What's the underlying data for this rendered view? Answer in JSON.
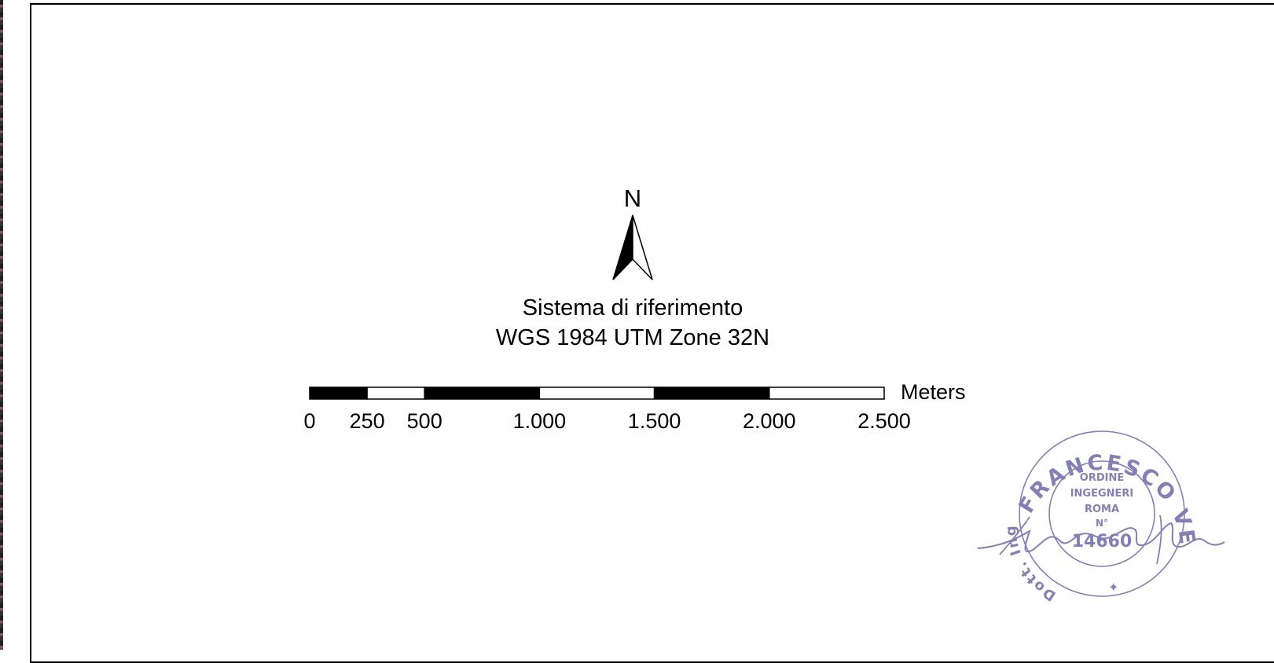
{
  "north_arrow": {
    "letter": "N"
  },
  "reference_system": {
    "line1": "Sistema di riferimento",
    "line2": "WGS 1984 UTM Zone 32N"
  },
  "scale_bar": {
    "unit": "Meters",
    "max_value": 2500,
    "ticks": [
      {
        "value": 0,
        "label": "0"
      },
      {
        "value": 250,
        "label": "250"
      },
      {
        "value": 500,
        "label": "500"
      },
      {
        "value": 1000,
        "label": "1.000"
      },
      {
        "value": 1500,
        "label": "1.500"
      },
      {
        "value": 2000,
        "label": "2.000"
      },
      {
        "value": 2500,
        "label": "2.500"
      }
    ],
    "segments": [
      {
        "from": 0,
        "to": 250,
        "fill": "#000000"
      },
      {
        "from": 250,
        "to": 500,
        "fill": "#ffffff"
      },
      {
        "from": 500,
        "to": 1000,
        "fill": "#000000"
      },
      {
        "from": 1000,
        "to": 1500,
        "fill": "#ffffff"
      },
      {
        "from": 1500,
        "to": 2000,
        "fill": "#000000"
      },
      {
        "from": 2000,
        "to": 2500,
        "fill": "#ffffff"
      }
    ]
  },
  "stamp": {
    "ring_text_top": "FRANCESCO VENTURA",
    "ring_text_left": "Dott. Ing.",
    "center_lines": [
      "ORDINE",
      "INGEGNERI",
      "ROMA",
      "N°",
      "14660"
    ],
    "ink_color": "#6f6aa8"
  }
}
